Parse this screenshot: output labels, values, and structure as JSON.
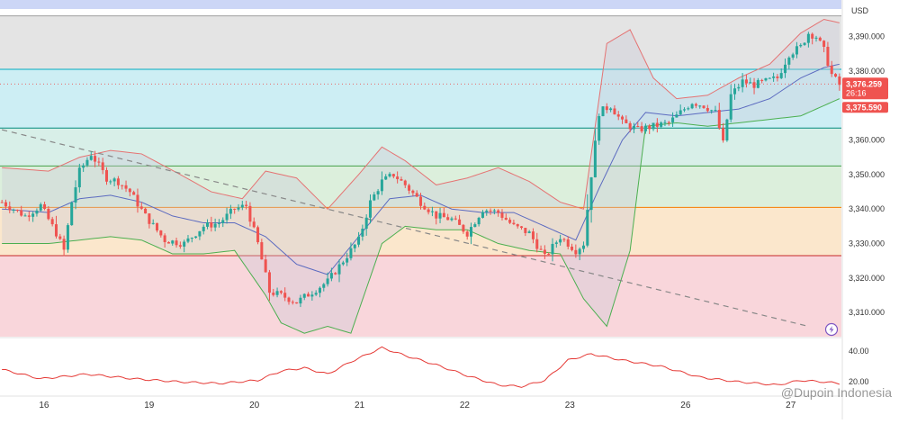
{
  "currency": "USD",
  "watermark": "@Dupoin Indonesia",
  "flash_icon": "lightning-icon",
  "colors": {
    "up": "#26a69a",
    "down": "#ef5350",
    "bb_upper": "#e57373",
    "bb_lower": "#4caf50",
    "bb_mid": "#5c6bc0",
    "trendline": "#888888",
    "oscillator": "#e53935"
  },
  "chart_data": [
    {
      "type": "candlestick",
      "symbol_currency": "USD",
      "x_tick_labels": [
        "16",
        "19",
        "20",
        "21",
        "22",
        "23",
        "26",
        "27"
      ],
      "y_tick_labels": [
        "3,310.000",
        "3,320.000",
        "3,330.000",
        "3,340.000",
        "3,350.000",
        "3,360.000",
        "3,370.000",
        "3,380.000",
        "3,390.000"
      ],
      "ylim": [
        3303,
        3398
      ],
      "price_label": "3,376.259",
      "countdown_label": "26:16",
      "second_price_label": "3,375.590",
      "fib_levels": [
        3326.5,
        3340.5,
        3352.5,
        3363.5,
        3380.5,
        3396
      ],
      "fib_zone_colors": [
        "#f9d6db",
        "#fbe7cc",
        "#dcefdc",
        "#d8efe8",
        "#cdeef4",
        "#e4e4e4"
      ],
      "fib_line_colors": [
        "#c62828",
        "#f57c00",
        "#43a047",
        "#00897b",
        "#00acc1",
        "#9e9e9e"
      ],
      "trendline": {
        "from": [
          0,
          3363
        ],
        "to": [
          208,
          3306
        ]
      },
      "close_path": [
        [
          0,
          3342
        ],
        [
          6,
          3338
        ],
        [
          10,
          3341
        ],
        [
          14,
          3333
        ],
        [
          16,
          3328
        ],
        [
          18,
          3342
        ],
        [
          20,
          3351
        ],
        [
          23,
          3356
        ],
        [
          27,
          3349
        ],
        [
          30,
          3348
        ],
        [
          33,
          3345
        ],
        [
          37,
          3338
        ],
        [
          42,
          3331
        ],
        [
          47,
          3330
        ],
        [
          52,
          3335
        ],
        [
          56,
          3336
        ],
        [
          60,
          3340
        ],
        [
          63,
          3341
        ],
        [
          66,
          3330
        ],
        [
          69,
          3316
        ],
        [
          72,
          3315
        ],
        [
          76,
          3313
        ],
        [
          80,
          3316
        ],
        [
          84,
          3319
        ],
        [
          88,
          3325
        ],
        [
          92,
          3331
        ],
        [
          95,
          3342
        ],
        [
          98,
          3348
        ],
        [
          101,
          3350
        ],
        [
          104,
          3347
        ],
        [
          108,
          3342
        ],
        [
          112,
          3338
        ],
        [
          116,
          3337
        ],
        [
          120,
          3333
        ],
        [
          124,
          3340
        ],
        [
          128,
          3339
        ],
        [
          132,
          3335
        ],
        [
          136,
          3333
        ],
        [
          140,
          3326
        ],
        [
          144,
          3332
        ],
        [
          148,
          3328
        ],
        [
          150,
          3330
        ],
        [
          152,
          3350
        ],
        [
          154,
          3368
        ],
        [
          157,
          3370
        ],
        [
          160,
          3365
        ],
        [
          164,
          3363
        ],
        [
          168,
          3364
        ],
        [
          172,
          3365
        ],
        [
          175,
          3368
        ],
        [
          178,
          3371
        ],
        [
          181,
          3370
        ],
        [
          184,
          3368
        ],
        [
          186,
          3359
        ],
        [
          188,
          3373
        ],
        [
          191,
          3377
        ],
        [
          194,
          3376
        ],
        [
          197,
          3377
        ],
        [
          200,
          3378
        ],
        [
          203,
          3385
        ],
        [
          206,
          3387
        ],
        [
          208,
          3391
        ],
        [
          210,
          3390
        ],
        [
          212,
          3386
        ],
        [
          214,
          3379
        ],
        [
          216,
          3376
        ]
      ],
      "bollinger": {
        "upper": [
          [
            0,
            3352
          ],
          [
            12,
            3351
          ],
          [
            20,
            3355
          ],
          [
            28,
            3357
          ],
          [
            36,
            3356
          ],
          [
            46,
            3350
          ],
          [
            54,
            3345
          ],
          [
            62,
            3343
          ],
          [
            68,
            3351
          ],
          [
            76,
            3349
          ],
          [
            84,
            3340
          ],
          [
            92,
            3350
          ],
          [
            98,
            3358
          ],
          [
            104,
            3354
          ],
          [
            112,
            3347
          ],
          [
            120,
            3349
          ],
          [
            128,
            3352
          ],
          [
            136,
            3348
          ],
          [
            144,
            3342
          ],
          [
            150,
            3340
          ],
          [
            156,
            3388
          ],
          [
            162,
            3392
          ],
          [
            168,
            3378
          ],
          [
            174,
            3372
          ],
          [
            182,
            3373
          ],
          [
            190,
            3378
          ],
          [
            198,
            3382
          ],
          [
            206,
            3391
          ],
          [
            212,
            3395
          ],
          [
            216,
            3394
          ]
        ],
        "middle": [
          [
            0,
            3340
          ],
          [
            12,
            3339
          ],
          [
            20,
            3343
          ],
          [
            28,
            3344
          ],
          [
            36,
            3342
          ],
          [
            44,
            3338
          ],
          [
            52,
            3336
          ],
          [
            60,
            3336
          ],
          [
            68,
            3332
          ],
          [
            76,
            3324
          ],
          [
            84,
            3321
          ],
          [
            92,
            3332
          ],
          [
            100,
            3343
          ],
          [
            108,
            3344
          ],
          [
            116,
            3340
          ],
          [
            124,
            3339
          ],
          [
            132,
            3339
          ],
          [
            140,
            3335
          ],
          [
            148,
            3331
          ],
          [
            154,
            3346
          ],
          [
            160,
            3360
          ],
          [
            166,
            3368
          ],
          [
            174,
            3367
          ],
          [
            182,
            3368
          ],
          [
            190,
            3369
          ],
          [
            198,
            3372
          ],
          [
            206,
            3378
          ],
          [
            212,
            3381
          ],
          [
            216,
            3382
          ]
        ],
        "lower": [
          [
            0,
            3330
          ],
          [
            12,
            3330
          ],
          [
            20,
            3331
          ],
          [
            28,
            3332
          ],
          [
            36,
            3331
          ],
          [
            44,
            3327
          ],
          [
            52,
            3327
          ],
          [
            60,
            3328
          ],
          [
            68,
            3315
          ],
          [
            72,
            3307
          ],
          [
            78,
            3304
          ],
          [
            84,
            3306
          ],
          [
            90,
            3304
          ],
          [
            98,
            3330
          ],
          [
            104,
            3335
          ],
          [
            112,
            3334
          ],
          [
            120,
            3334
          ],
          [
            128,
            3330
          ],
          [
            136,
            3328
          ],
          [
            144,
            3327
          ],
          [
            150,
            3314
          ],
          [
            156,
            3306
          ],
          [
            162,
            3328
          ],
          [
            166,
            3364
          ],
          [
            174,
            3365
          ],
          [
            182,
            3364
          ],
          [
            190,
            3365
          ],
          [
            198,
            3366
          ],
          [
            206,
            3367
          ],
          [
            212,
            3370
          ],
          [
            216,
            3372
          ]
        ]
      },
      "oscillator": {
        "y_tick_labels": [
          "20.00",
          "40.00"
        ],
        "ylim": [
          12,
          48
        ],
        "values": [
          [
            0,
            28
          ],
          [
            10,
            22
          ],
          [
            22,
            25
          ],
          [
            34,
            22
          ],
          [
            46,
            20
          ],
          [
            56,
            19
          ],
          [
            66,
            21
          ],
          [
            72,
            27
          ],
          [
            78,
            29
          ],
          [
            84,
            25
          ],
          [
            90,
            33
          ],
          [
            98,
            42
          ],
          [
            104,
            37
          ],
          [
            112,
            31
          ],
          [
            120,
            24
          ],
          [
            128,
            18
          ],
          [
            134,
            17
          ],
          [
            140,
            21
          ],
          [
            146,
            34
          ],
          [
            152,
            38
          ],
          [
            160,
            34
          ],
          [
            170,
            30
          ],
          [
            180,
            23
          ],
          [
            190,
            20
          ],
          [
            200,
            18
          ],
          [
            206,
            21
          ],
          [
            212,
            20
          ],
          [
            216,
            19
          ]
        ]
      }
    }
  ]
}
